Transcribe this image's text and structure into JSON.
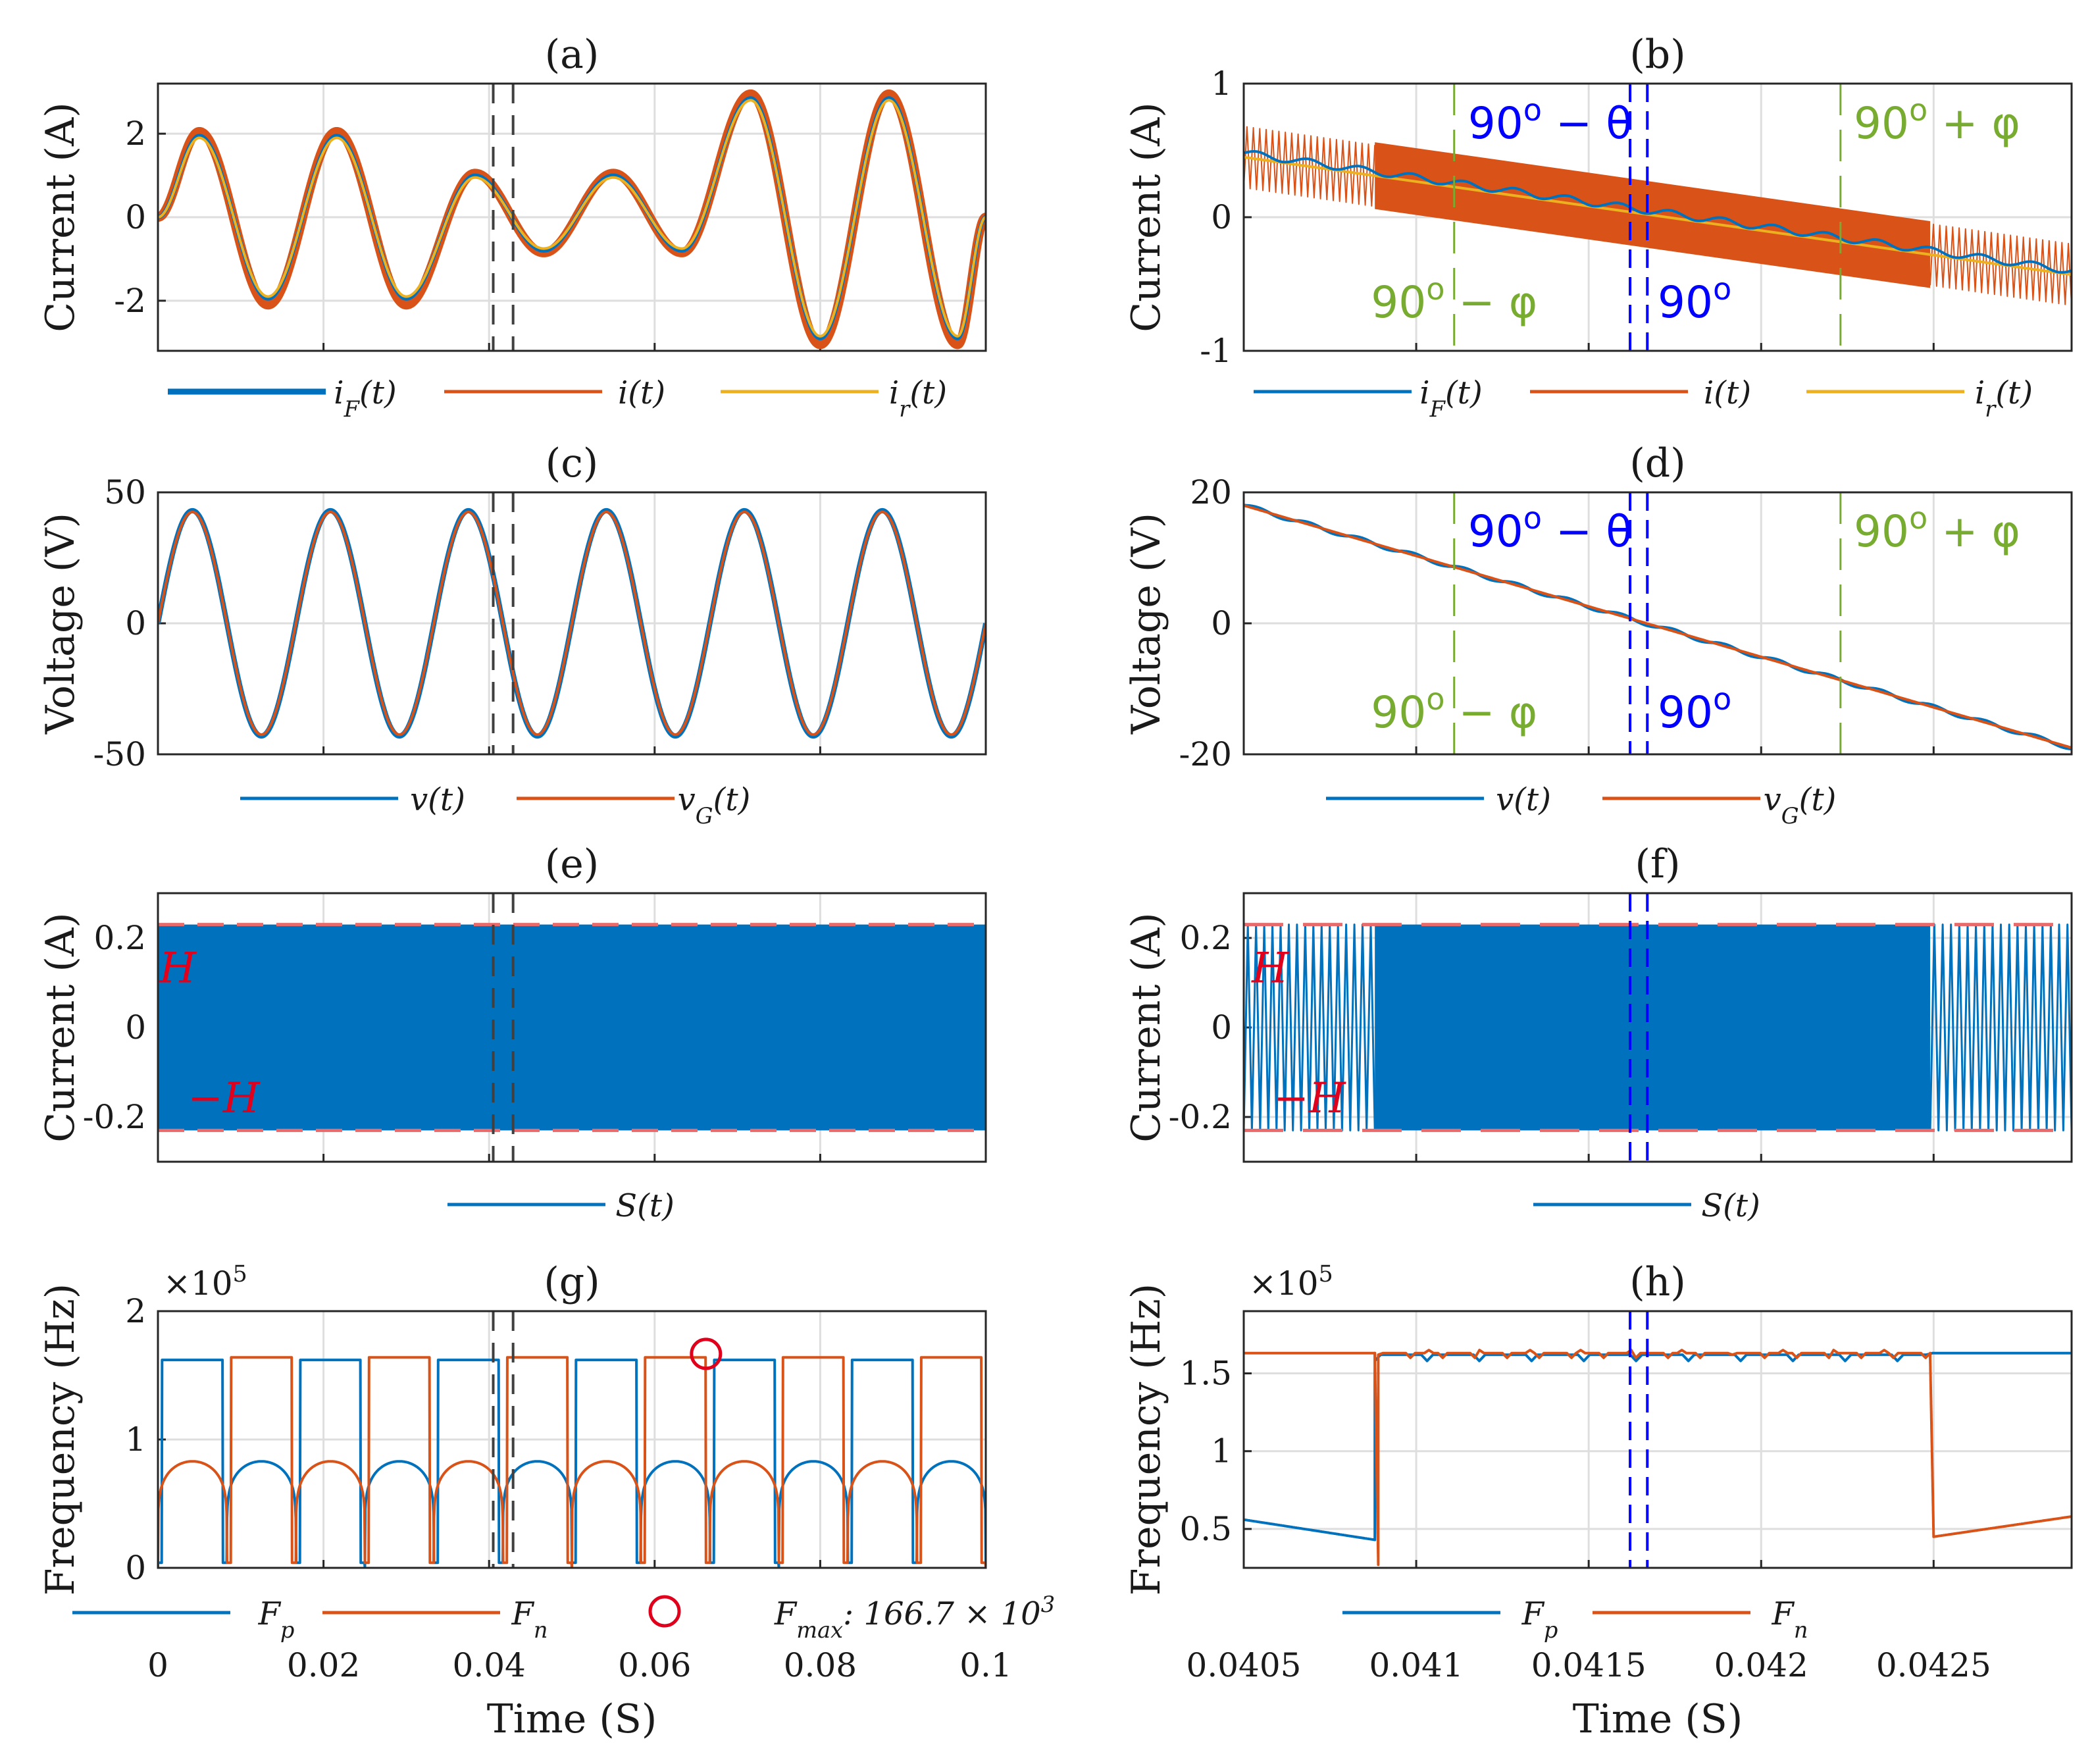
{
  "colors": {
    "blue": "#0072BD",
    "orange": "#D95319",
    "yellow": "#EDB120",
    "green": "#77AC30",
    "annblue": "#0000FF",
    "red": "#E0001B",
    "dark": "#404040"
  },
  "chart_data": [
    {
      "id": "a",
      "type": "line",
      "title": "(a)",
      "ylabel": "Current (A)",
      "xlim": [
        0,
        0.1
      ],
      "ylim": [
        -3.2,
        3.2
      ],
      "yticks": [
        -2,
        0,
        2
      ],
      "ytick_labels": [
        "-2",
        "0",
        "2"
      ],
      "xticks": [
        0.02,
        0.04,
        0.06,
        0.08
      ],
      "legend": [
        "i_F(t)",
        "i(t)",
        "i_r(t)"
      ],
      "series": [
        {
          "name": "i(t)",
          "x": [
            0,
            0.005,
            0.0133,
            0.0216,
            0.03,
            0.0383,
            0.0466,
            0.055,
            0.0633,
            0.0716,
            0.08,
            0.0883,
            0.0966,
            0.1
          ],
          "y": [
            0,
            2.05,
            -2.1,
            2.05,
            -2.1,
            1.05,
            -0.85,
            1.05,
            -0.85,
            2.95,
            -3.05,
            2.95,
            -3.05,
            0
          ]
        },
        {
          "name": "i_F(t)",
          "x": [
            0,
            0.005,
            0.0133,
            0.0216,
            0.03,
            0.0383,
            0.0466,
            0.055,
            0.0633,
            0.0716,
            0.08,
            0.0883,
            0.0966,
            0.1
          ],
          "y": [
            0,
            1.95,
            -1.95,
            1.95,
            -1.95,
            1.0,
            -0.8,
            1.0,
            -0.8,
            2.85,
            -2.9,
            2.85,
            -2.9,
            0
          ]
        },
        {
          "name": "i_r(t)",
          "x": [
            0,
            0.005,
            0.0133,
            0.0216,
            0.03,
            0.0383,
            0.0466,
            0.055,
            0.0633,
            0.0716,
            0.08,
            0.0883,
            0.0966,
            0.1
          ],
          "y": [
            0,
            1.9,
            -1.9,
            1.9,
            -1.9,
            0.95,
            -0.75,
            0.95,
            -0.75,
            2.8,
            -2.85,
            2.8,
            -2.85,
            0
          ]
        }
      ],
      "vlines": [
        0.0405,
        0.0429
      ]
    },
    {
      "id": "b",
      "type": "line",
      "title": "(b)",
      "ylabel": "Current (A)",
      "xlim": [
        0.0405,
        0.0429
      ],
      "ylim": [
        -1,
        1
      ],
      "yticks": [
        -1,
        0,
        1
      ],
      "ytick_labels": [
        "-1",
        "0",
        "1"
      ],
      "xticks": [
        0.041,
        0.0415,
        0.042,
        0.0425
      ],
      "legend": [
        "i_F(t)",
        "i(t)",
        "i_r(t)"
      ],
      "series": [
        {
          "name": "i_r(t)",
          "x": [
            0.0405,
            0.0429
          ],
          "y": [
            0.45,
            -0.43
          ]
        },
        {
          "name": "i_F(t)",
          "x": [
            0.0405,
            0.0429
          ],
          "y": [
            0.48,
            -0.4
          ]
        }
      ],
      "ripple": {
        "inner_start": 0.04088,
        "inner_end": 0.04249,
        "outer_amplitude": 0.23,
        "inner_amplitude": 0.25
      },
      "vlines_blue": [
        0.04162,
        0.04167
      ],
      "vlines_green": [
        0.04111,
        0.04223
      ],
      "annotations": [
        "90^o − θ",
        "90^o + φ",
        "90^o − φ",
        "90^o"
      ]
    },
    {
      "id": "c",
      "type": "line",
      "title": "(c)",
      "ylabel": "Voltage (V)",
      "xlim": [
        0,
        0.1
      ],
      "ylim": [
        -50,
        50
      ],
      "yticks": [
        -50,
        0,
        50
      ],
      "ytick_labels": [
        "-50",
        "0",
        "50"
      ],
      "xticks": [
        0.02,
        0.04,
        0.06,
        0.08
      ],
      "legend": [
        "v(t)",
        "v_G(t)"
      ],
      "series": [
        {
          "name": "v(t)",
          "amplitude": 43,
          "frequency_hz": 60
        },
        {
          "name": "v_G(t)",
          "amplitude": 42.5,
          "frequency_hz": 60
        }
      ],
      "vlines": [
        0.0405,
        0.0429
      ]
    },
    {
      "id": "d",
      "type": "line",
      "title": "(d)",
      "ylabel": "Voltage (V)",
      "xlim": [
        0.0405,
        0.0429
      ],
      "ylim": [
        -20,
        20
      ],
      "yticks": [
        -20,
        0,
        20
      ],
      "ytick_labels": [
        "-20",
        "0",
        "20"
      ],
      "xticks": [
        0.041,
        0.0415,
        0.042,
        0.0425
      ],
      "legend": [
        "v(t)",
        "v_G(t)"
      ],
      "series": [
        {
          "name": "v(t)",
          "x": [
            0.0405,
            0.0429
          ],
          "y": [
            18,
            -19
          ]
        },
        {
          "name": "v_G(t)",
          "x": [
            0.0405,
            0.0429
          ],
          "y": [
            18,
            -19
          ]
        }
      ],
      "vlines_blue": [
        0.04162,
        0.04167
      ],
      "vlines_green": [
        0.04111,
        0.04223
      ],
      "annotations": [
        "90^o − θ",
        "90^o + φ",
        "90^o − φ",
        "90^o"
      ]
    },
    {
      "id": "e",
      "type": "area",
      "title": "(e)",
      "ylabel": "Current (A)",
      "xlim": [
        0,
        0.1
      ],
      "ylim": [
        -0.3,
        0.3
      ],
      "yticks": [
        -0.2,
        0,
        0.2
      ],
      "ytick_labels": [
        "-0.2",
        "0",
        "0.2"
      ],
      "xticks": [
        0.02,
        0.04,
        0.06,
        0.08
      ],
      "legend": [
        "S(t)"
      ],
      "band": [
        -0.23,
        0.23
      ],
      "hysteresis": 0.23,
      "hlabels": [
        "H",
        "−H"
      ],
      "vlines": [
        0.0405,
        0.0429
      ]
    },
    {
      "id": "f",
      "type": "area",
      "title": "(f)",
      "ylabel": "Current (A)",
      "xlim": [
        0.0405,
        0.0429
      ],
      "ylim": [
        -0.3,
        0.3
      ],
      "yticks": [
        -0.2,
        0,
        0.2
      ],
      "ytick_labels": [
        "-0.2",
        "0",
        "0.2"
      ],
      "xticks": [
        0.041,
        0.0415,
        0.042,
        0.0425
      ],
      "legend": [
        "S(t)"
      ],
      "band": [
        -0.23,
        0.23
      ],
      "hysteresis": 0.23,
      "hlabels": [
        "H",
        "−H"
      ],
      "dense_segment": [
        0.04088,
        0.04249
      ],
      "vlines_blue": [
        0.04162,
        0.04167
      ]
    },
    {
      "id": "g",
      "type": "line",
      "title": "(g)",
      "ylabel": "Frequency (Hz)",
      "xlabel": "Time (S)",
      "xlim": [
        0,
        0.1
      ],
      "ylim": [
        0,
        200000
      ],
      "yticks": [
        0,
        100000,
        200000
      ],
      "ytick_labels": [
        "0",
        "1",
        "2"
      ],
      "exponent": "×10^5",
      "xticks": [
        0,
        0.02,
        0.04,
        0.06,
        0.08,
        0.1
      ],
      "xtick_labels": [
        "0",
        "0.02",
        "0.04",
        "0.06",
        "0.08",
        "0.1"
      ],
      "legend": [
        "F_p",
        "F_n",
        "F_max: 166.7 × 10^3"
      ],
      "series": [
        {
          "name": "F_p",
          "high": 162000,
          "low": 83000
        },
        {
          "name": "F_n",
          "high": 164000,
          "low": 83000
        }
      ],
      "marker": {
        "x": 0.0662,
        "y": 166700,
        "label": "F_max"
      },
      "vlines": [
        0.0405,
        0.0429
      ]
    },
    {
      "id": "h",
      "type": "line",
      "title": "(h)",
      "ylabel": "Frequency (Hz)",
      "xlabel": "Time (S)",
      "xlim": [
        0.0405,
        0.0429
      ],
      "ylim": [
        25000,
        190000
      ],
      "yticks": [
        50000,
        100000,
        150000
      ],
      "ytick_labels": [
        "0.5",
        "1",
        "1.5"
      ],
      "exponent": "×10^5",
      "xticks": [
        0.0405,
        0.041,
        0.0415,
        0.042,
        0.0425
      ],
      "xtick_labels": [
        "0.0405",
        "0.041",
        "0.0415",
        "0.042",
        "0.0425"
      ],
      "legend": [
        "F_p",
        "F_n"
      ],
      "series": [
        {
          "name": "F_p",
          "x": [
            0.0405,
            0.04088,
            0.04088,
            0.0429
          ],
          "y": [
            56000,
            43000,
            163000,
            163000
          ]
        },
        {
          "name": "F_n",
          "x": [
            0.0405,
            0.04088,
            0.04089,
            0.04249,
            0.0425,
            0.0429
          ],
          "y": [
            163000,
            163000,
            27000,
            160000,
            45000,
            58000
          ]
        }
      ],
      "vlines_blue": [
        0.04162,
        0.04167
      ]
    }
  ]
}
